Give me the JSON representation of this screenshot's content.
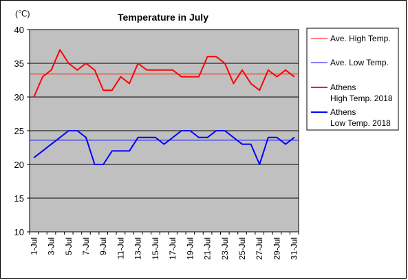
{
  "chart_data": {
    "type": "line",
    "title": "Temperature in July",
    "unit_label": "(℃)",
    "categories": [
      "1-Jul",
      "2-Jul",
      "3-Jul",
      "4-Jul",
      "5-Jul",
      "6-Jul",
      "7-Jul",
      "8-Jul",
      "9-Jul",
      "10-Jul",
      "11-Jul",
      "12-Jul",
      "13-Jul",
      "14-Jul",
      "15-Jul",
      "16-Jul",
      "17-Jul",
      "18-Jul",
      "19-Jul",
      "20-Jul",
      "21-Jul",
      "22-Jul",
      "23-Jul",
      "24-Jul",
      "25-Jul",
      "26-Jul",
      "27-Jul",
      "28-Jul",
      "29-Jul",
      "30-Jul",
      "31-Jul"
    ],
    "x_tick_labels": [
      "1-Jul",
      "3-Jul",
      "5-Jul",
      "7-Jul",
      "9-Jul",
      "11-Jul",
      "13-Jul",
      "15-Jul",
      "17-Jul",
      "19-Jul",
      "21-Jul",
      "23-Jul",
      "25-Jul",
      "27-Jul",
      "29-Jul",
      "31-Jul"
    ],
    "y_ticks": [
      "10",
      "15",
      "20",
      "25",
      "30",
      "35",
      "40"
    ],
    "ylim": [
      10,
      40
    ],
    "grid": true,
    "legend_position": "right",
    "plot_background": "#c0c0c0",
    "series": [
      {
        "name": "Ave. High Temp.",
        "kind": "average",
        "color": "#ff0000",
        "value": 33.4
      },
      {
        "name": "Ave. Low Temp.",
        "kind": "average",
        "color": "#0000ff",
        "value": 23.6
      },
      {
        "name": "Athens\nHigh Temp. 2018",
        "legend_lines": [
          "Athens",
          "High Temp. 2018"
        ],
        "kind": "daily",
        "color": "#ff0000",
        "values": [
          30,
          33,
          34,
          37,
          35,
          34,
          35,
          34,
          31,
          31,
          33,
          32,
          35,
          34,
          34,
          34,
          34,
          33,
          33,
          33,
          36,
          36,
          35,
          32,
          34,
          32,
          31,
          34,
          33,
          34,
          33
        ]
      },
      {
        "name": "Athens\nLow Temp. 2018",
        "legend_lines": [
          "Athens",
          "Low Temp. 2018"
        ],
        "kind": "daily",
        "color": "#0000ff",
        "values": [
          21,
          22,
          23,
          24,
          25,
          25,
          24,
          20,
          20,
          22,
          22,
          22,
          24,
          24,
          24,
          23,
          24,
          25,
          25,
          24,
          24,
          25,
          25,
          24,
          23,
          23,
          20,
          24,
          24,
          23,
          24
        ]
      }
    ]
  }
}
